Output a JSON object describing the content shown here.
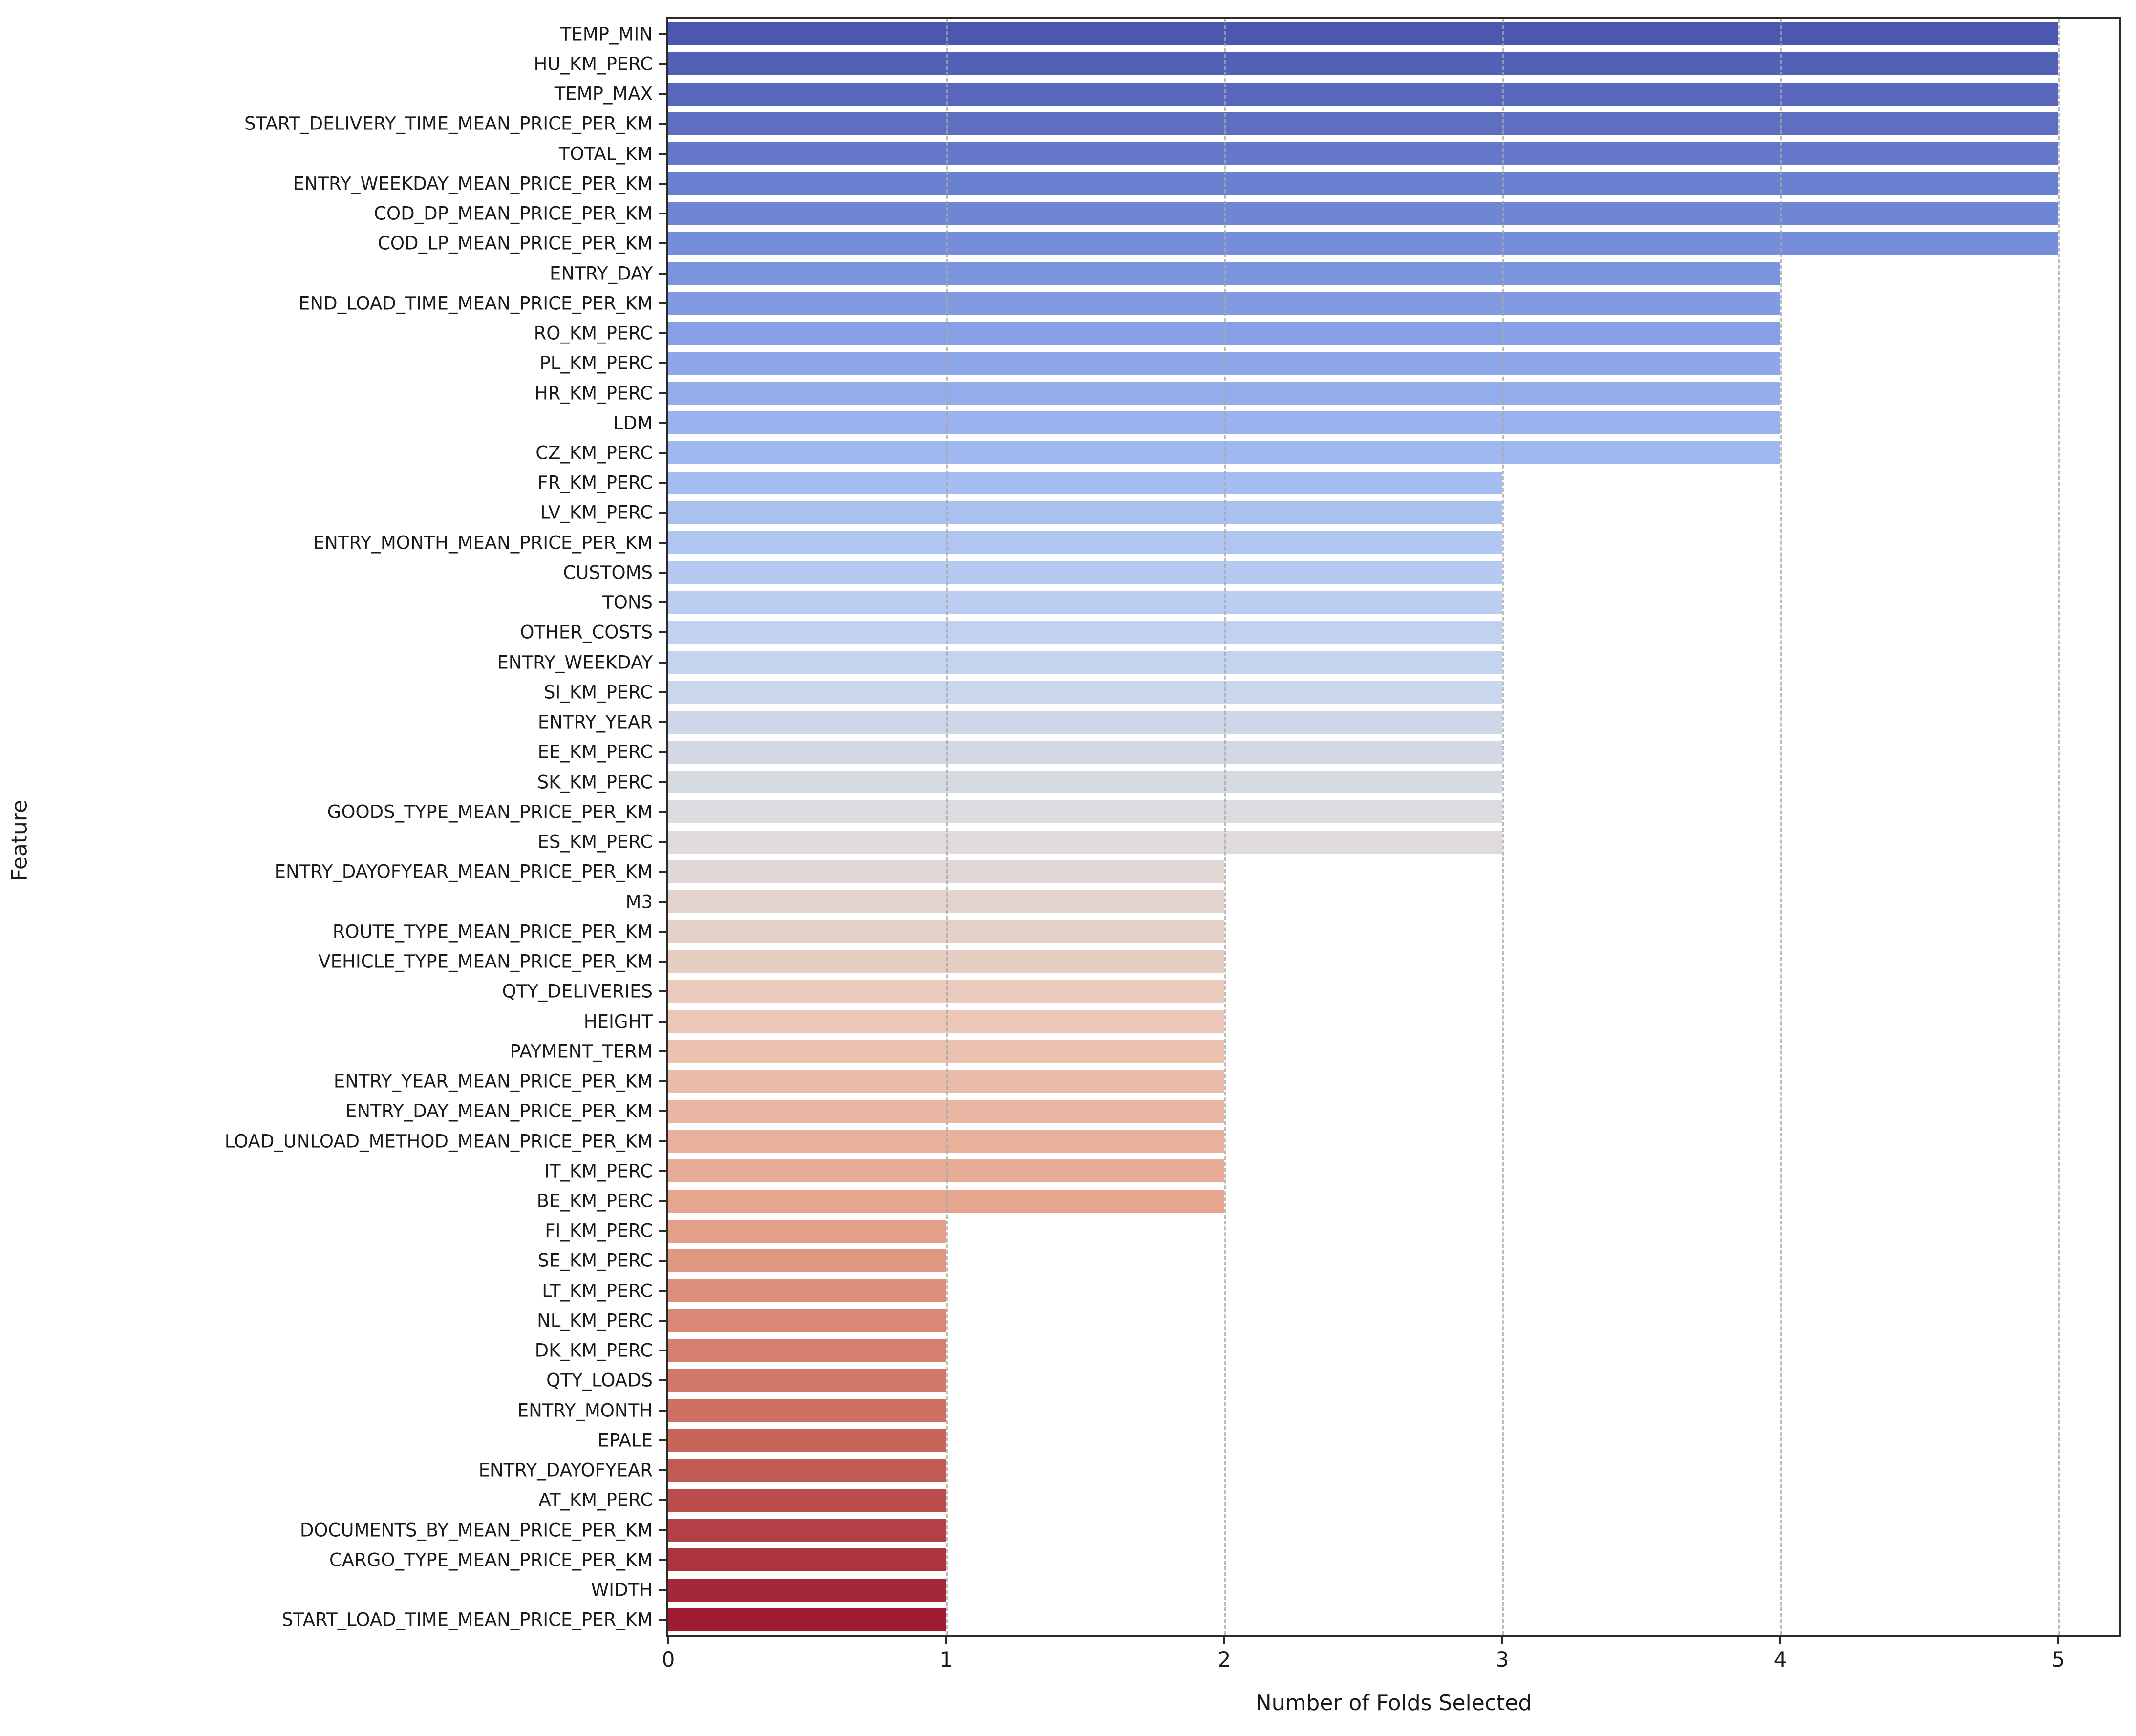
{
  "figure": {
    "background": "#ffffff",
    "text_color": "#1a1a1a",
    "spine_color": "#2b2b2b",
    "grid_color": "#a8a8a8"
  },
  "chart_data": {
    "type": "bar",
    "orientation": "horizontal",
    "title": "",
    "xlabel": "Number of Folds Selected",
    "ylabel": "Feature",
    "xlim": [
      0,
      5.23
    ],
    "x_ticks": [
      0,
      1,
      2,
      3,
      4,
      5
    ],
    "grid": "vertical dashed gridlines at each x tick",
    "legend": "none",
    "palette": "coolwarm (top=dark blue, middle=light gray, bottom=dark red)",
    "categories": [
      "TEMP_MIN",
      "HU_KM_PERC",
      "TEMP_MAX",
      "START_DELIVERY_TIME_MEAN_PRICE_PER_KM",
      "TOTAL_KM",
      "ENTRY_WEEKDAY_MEAN_PRICE_PER_KM",
      "COD_DP_MEAN_PRICE_PER_KM",
      "COD_LP_MEAN_PRICE_PER_KM",
      "ENTRY_DAY",
      "END_LOAD_TIME_MEAN_PRICE_PER_KM",
      "RO_KM_PERC",
      "PL_KM_PERC",
      "HR_KM_PERC",
      "LDM",
      "CZ_KM_PERC",
      "FR_KM_PERC",
      "LV_KM_PERC",
      "ENTRY_MONTH_MEAN_PRICE_PER_KM",
      "CUSTOMS",
      "TONS",
      "OTHER_COSTS",
      "ENTRY_WEEKDAY",
      "SI_KM_PERC",
      "ENTRY_YEAR",
      "EE_KM_PERC",
      "SK_KM_PERC",
      "GOODS_TYPE_MEAN_PRICE_PER_KM",
      "ES_KM_PERC",
      "ENTRY_DAYOFYEAR_MEAN_PRICE_PER_KM",
      "M3",
      "ROUTE_TYPE_MEAN_PRICE_PER_KM",
      "VEHICLE_TYPE_MEAN_PRICE_PER_KM",
      "QTY_DELIVERIES",
      "HEIGHT",
      "PAYMENT_TERM",
      "ENTRY_YEAR_MEAN_PRICE_PER_KM",
      "ENTRY_DAY_MEAN_PRICE_PER_KM",
      "LOAD_UNLOAD_METHOD_MEAN_PRICE_PER_KM",
      "IT_KM_PERC",
      "BE_KM_PERC",
      "FI_KM_PERC",
      "SE_KM_PERC",
      "LT_KM_PERC",
      "NL_KM_PERC",
      "DK_KM_PERC",
      "QTY_LOADS",
      "ENTRY_MONTH",
      "EPALE",
      "ENTRY_DAYOFYEAR",
      "AT_KM_PERC",
      "DOCUMENTS_BY_MEAN_PRICE_PER_KM",
      "CARGO_TYPE_MEAN_PRICE_PER_KM",
      "WIDTH",
      "START_LOAD_TIME_MEAN_PRICE_PER_KM"
    ],
    "values": [
      5,
      5,
      5,
      5,
      5,
      5,
      5,
      5,
      4,
      4,
      4,
      4,
      4,
      4,
      4,
      3,
      3,
      3,
      3,
      3,
      3,
      3,
      3,
      3,
      3,
      3,
      3,
      3,
      2,
      2,
      2,
      2,
      2,
      2,
      2,
      2,
      2,
      2,
      2,
      2,
      1,
      1,
      1,
      1,
      1,
      1,
      1,
      1,
      1,
      1,
      1,
      1,
      1,
      1
    ],
    "bar_colors": [
      "#4C58AF",
      "#5260B5",
      "#5867BC",
      "#5E6FC2",
      "#6477C8",
      "#697FCF",
      "#6F86D5",
      "#758DDA",
      "#7B94DE",
      "#819AE1",
      "#87A0E5",
      "#8DA7E8",
      "#93ADEC",
      "#9AB3EF",
      "#9FB8F0",
      "#A5BDF0",
      "#AAC1F0",
      "#B0C5F1",
      "#B6CAF1",
      "#BBCEF1",
      "#C1D2F1",
      "#C5D4EE",
      "#C9D6EB",
      "#CED7E8",
      "#D2D9E5",
      "#D6DBE2",
      "#DBDCDF",
      "#DEDBDA",
      "#E0D8D4",
      "#E3D5CE",
      "#E5D1C8",
      "#E7CEC3",
      "#EACBBD",
      "#ECC7B7",
      "#EBC2B0",
      "#EABCAA",
      "#E9B6A3",
      "#E8B19C",
      "#E7AB96",
      "#E6A58F",
      "#E49F88",
      "#E09782",
      "#DD8F7B",
      "#D98875",
      "#D5806E",
      "#D17868",
      "#CD7061",
      "#C8655B",
      "#C15954",
      "#BA4C4E",
      "#B34047",
      "#AC3340",
      "#A5273A",
      "#9E1A33"
    ]
  }
}
